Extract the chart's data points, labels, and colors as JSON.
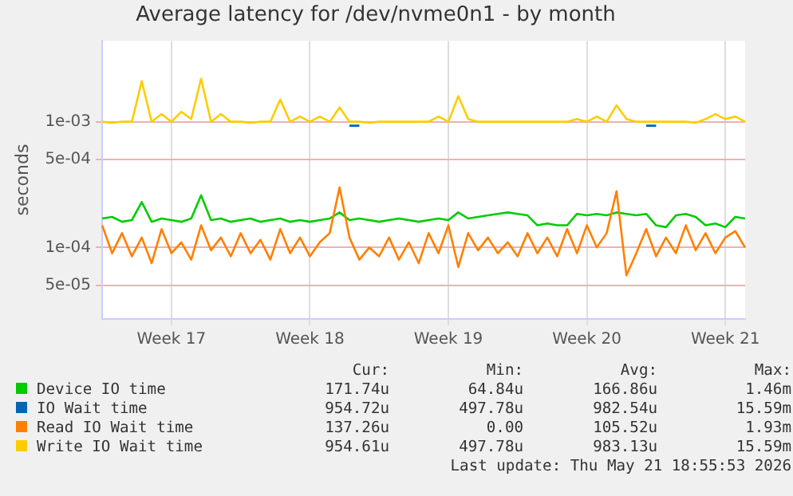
{
  "chart_data": {
    "type": "line",
    "title": "Average latency for /dev/nvme0n1 - by month",
    "ylabel": "seconds",
    "log": "y",
    "categories": [
      null,
      null,
      null,
      null,
      null,
      null,
      null,
      "Week 17",
      null,
      null,
      null,
      null,
      null,
      null,
      null,
      null,
      null,
      null,
      null,
      null,
      null,
      "Week 18",
      null,
      null,
      null,
      null,
      null,
      null,
      null,
      null,
      null,
      null,
      null,
      null,
      null,
      "Week 19",
      null,
      null,
      null,
      null,
      null,
      null,
      null,
      null,
      null,
      null,
      null,
      null,
      null,
      "Week 20",
      null,
      null,
      null,
      null,
      null,
      null,
      null,
      null,
      null,
      null,
      null,
      null,
      null,
      "Week 21",
      null,
      null
    ],
    "ylim": [
      2.7e-05,
      0.0044
    ],
    "yticks": [
      {
        "value": 5e-05,
        "label": "5e-05"
      },
      {
        "value": 0.0001,
        "label": "1e-04"
      },
      {
        "value": 0.0005,
        "label": "5e-04"
      },
      {
        "value": 0.001,
        "label": "1e-03"
      }
    ],
    "grid": true,
    "legend": "bottom",
    "marker": "none",
    "line_style": "solid",
    "series": [
      {
        "name": "Device IO time",
        "color": "#00cc00",
        "values": [
          0.00017,
          0.000175,
          0.00016,
          0.000165,
          0.00023,
          0.00016,
          0.00017,
          0.000165,
          0.00016,
          0.00017,
          0.00026,
          0.000165,
          0.00017,
          0.00016,
          0.000165,
          0.00017,
          0.00016,
          0.000165,
          0.00017,
          0.00016,
          0.000165,
          0.00016,
          0.000165,
          0.00017,
          0.00019,
          0.000165,
          0.00017,
          0.000165,
          0.00016,
          0.000165,
          0.00017,
          0.000165,
          0.00016,
          0.000165,
          0.00017,
          0.000165,
          0.00019,
          0.00017,
          0.000175,
          0.00018,
          0.000185,
          0.00019,
          0.000185,
          0.00018,
          0.00015,
          0.000155,
          0.00015,
          0.00015,
          0.000185,
          0.00018,
          0.000185,
          0.00018,
          0.00019,
          0.000185,
          0.00018,
          0.000185,
          0.00015,
          0.000145,
          0.00018,
          0.000185,
          0.000175,
          0.00015,
          0.000155,
          0.000145,
          0.000175,
          0.00017
        ]
      },
      {
        "name": "IO Wait time",
        "color": "#0066b3",
        "values": [
          null,
          null,
          null,
          null,
          null,
          null,
          null,
          null,
          null,
          null,
          null,
          null,
          null,
          null,
          null,
          null,
          null,
          null,
          null,
          null,
          null,
          null,
          null,
          null,
          null,
          0.00093,
          0.00093,
          null,
          null,
          null,
          null,
          null,
          null,
          null,
          null,
          null,
          null,
          null,
          null,
          null,
          null,
          null,
          null,
          null,
          null,
          null,
          null,
          null,
          null,
          null,
          null,
          null,
          null,
          null,
          null,
          0.00093,
          0.00093,
          null,
          null,
          null,
          null,
          null,
          null,
          null,
          null,
          null
        ]
      },
      {
        "name": "Read IO Wait time",
        "color": "#ff8000",
        "values": [
          0.00015,
          9e-05,
          0.00013,
          8.5e-05,
          0.00012,
          7.5e-05,
          0.00014,
          9e-05,
          0.00011,
          8e-05,
          0.00015,
          9.5e-05,
          0.00012,
          8.5e-05,
          0.00013,
          9e-05,
          0.000115,
          8e-05,
          0.00014,
          9e-05,
          0.00012,
          8.5e-05,
          0.00011,
          0.00013,
          0.0003,
          0.00012,
          8e-05,
          0.0001,
          8.5e-05,
          0.00012,
          8e-05,
          0.00011,
          7.5e-05,
          0.00013,
          9e-05,
          0.00015,
          7e-05,
          0.00013,
          9.5e-05,
          0.00012,
          9e-05,
          0.00011,
          8.5e-05,
          0.00013,
          9e-05,
          0.00012,
          8.5e-05,
          0.00014,
          9e-05,
          0.00015,
          0.0001,
          0.00013,
          0.00028,
          6e-05,
          9e-05,
          0.00014,
          8.5e-05,
          0.00012,
          9e-05,
          0.00015,
          9.5e-05,
          0.00013,
          9e-05,
          0.00012,
          0.000135,
          0.0001
        ]
      },
      {
        "name": "Write IO Wait time",
        "color": "#ffcc00",
        "values": [
          0.001,
          0.00098,
          0.001,
          0.001,
          0.0021,
          0.001,
          0.00115,
          0.001,
          0.0012,
          0.00105,
          0.0022,
          0.001,
          0.00115,
          0.001,
          0.001,
          0.00098,
          0.001,
          0.001,
          0.0015,
          0.001,
          0.0011,
          0.001,
          0.0011,
          0.001,
          0.0013,
          0.001,
          0.001,
          0.00098,
          0.001,
          0.001,
          0.001,
          0.001,
          0.001,
          0.001,
          0.0011,
          0.001,
          0.0016,
          0.00105,
          0.001,
          0.001,
          0.001,
          0.001,
          0.001,
          0.001,
          0.001,
          0.001,
          0.001,
          0.001,
          0.00105,
          0.001,
          0.0011,
          0.001,
          0.00135,
          0.00105,
          0.001,
          0.001,
          0.001,
          0.001,
          0.001,
          0.001,
          0.00098,
          0.00105,
          0.00115,
          0.00105,
          0.0011,
          0.001
        ]
      }
    ],
    "annotations": [
      "Cur:",
      "Min:",
      "Avg:",
      "Max:",
      "171.74u",
      "64.84u",
      "166.86u",
      "1.46m",
      "954.72u",
      "497.78u",
      "982.54u",
      "15.59m",
      "137.26u",
      "0.00",
      "105.52u",
      "1.93m",
      "954.61u",
      "497.78u",
      "983.13u",
      "15.59m",
      "Last update: Thu May 21 18:55:53 2026"
    ]
  }
}
